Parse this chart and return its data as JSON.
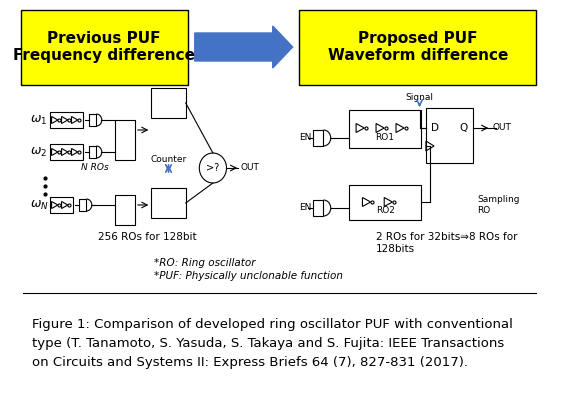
{
  "fig_width": 5.87,
  "fig_height": 4.03,
  "dpi": 100,
  "bg_color": "#ffffff",
  "yellow_color": "#FFFF00",
  "blue_arrow_color": "#4472C4",
  "left_box_text": "Previous PUF\nFrequency difference",
  "right_box_text": "Proposed PUF\nWaveform difference",
  "left_caption": "256 ROs for 128bit",
  "right_caption": "2 ROs for 32bits⇒8 ROs for\n128bits",
  "footnote1": "*RO: Ring oscillator",
  "footnote2": "*PUF: Physically unclonable function",
  "figure_caption": "Figure 1: Comparison of developed ring oscillator PUF with conventional\ntype (T. Tanamoto, S. Yasuda, S. Takaya and S. Fujita: IEEE Transactions\non Circuits and Systems II: Express Briefs 64 (7), 827-831 (2017).",
  "caption_fontsize": 9.5,
  "header_fontsize": 11,
  "body_fontsize": 8,
  "small_fontsize": 7.5
}
